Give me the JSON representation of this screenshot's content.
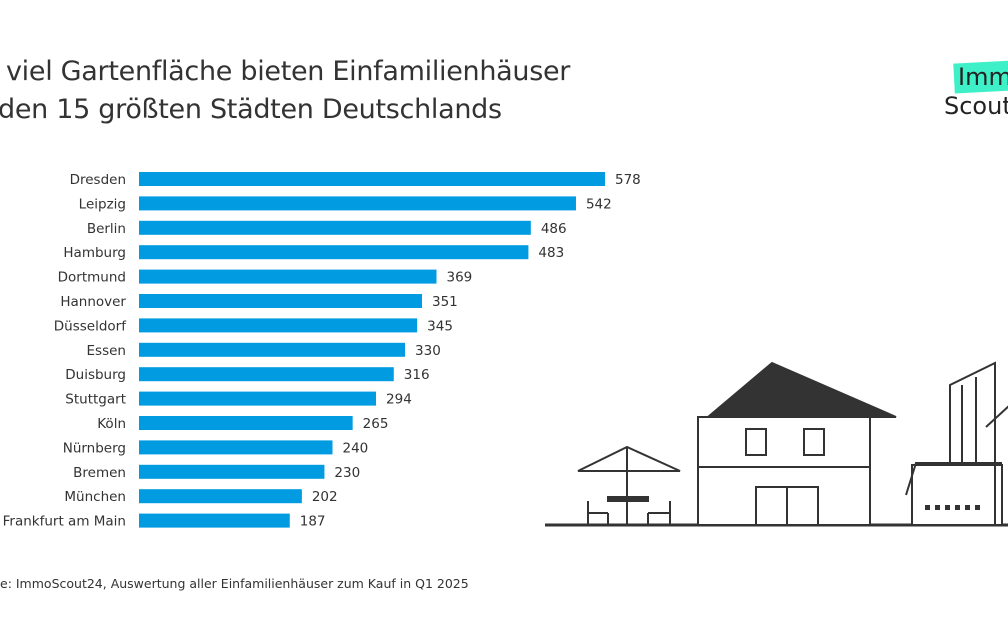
{
  "title_lines": [
    " viel Gartenfläche bieten Einfamilienhäuser",
    "den 15 größten Städten Deutschlands"
  ],
  "logo": {
    "line1": "Immo",
    "line2": "Scout",
    "accent": "#3ef0c8"
  },
  "source": "e: ImmoScout24, Auswertung aller Einfamilienhäuser zum Kauf in Q1 2025",
  "chart_data": {
    "type": "bar",
    "orientation": "horizontal",
    "categories": [
      "Dresden",
      "Leipzig",
      "Berlin",
      "Hamburg",
      "Dortmund",
      "Hannover",
      "Düsseldorf",
      "Essen",
      "Duisburg",
      "Stuttgart",
      "Köln",
      "Nürnberg",
      "Bremen",
      "München",
      "Frankfurt am Main"
    ],
    "values": [
      578,
      542,
      486,
      483,
      369,
      351,
      345,
      330,
      316,
      294,
      265,
      240,
      230,
      202,
      187
    ],
    "bar_color": "#009be1",
    "data_labels": true,
    "grid": false,
    "xlim": [
      0,
      578
    ]
  }
}
